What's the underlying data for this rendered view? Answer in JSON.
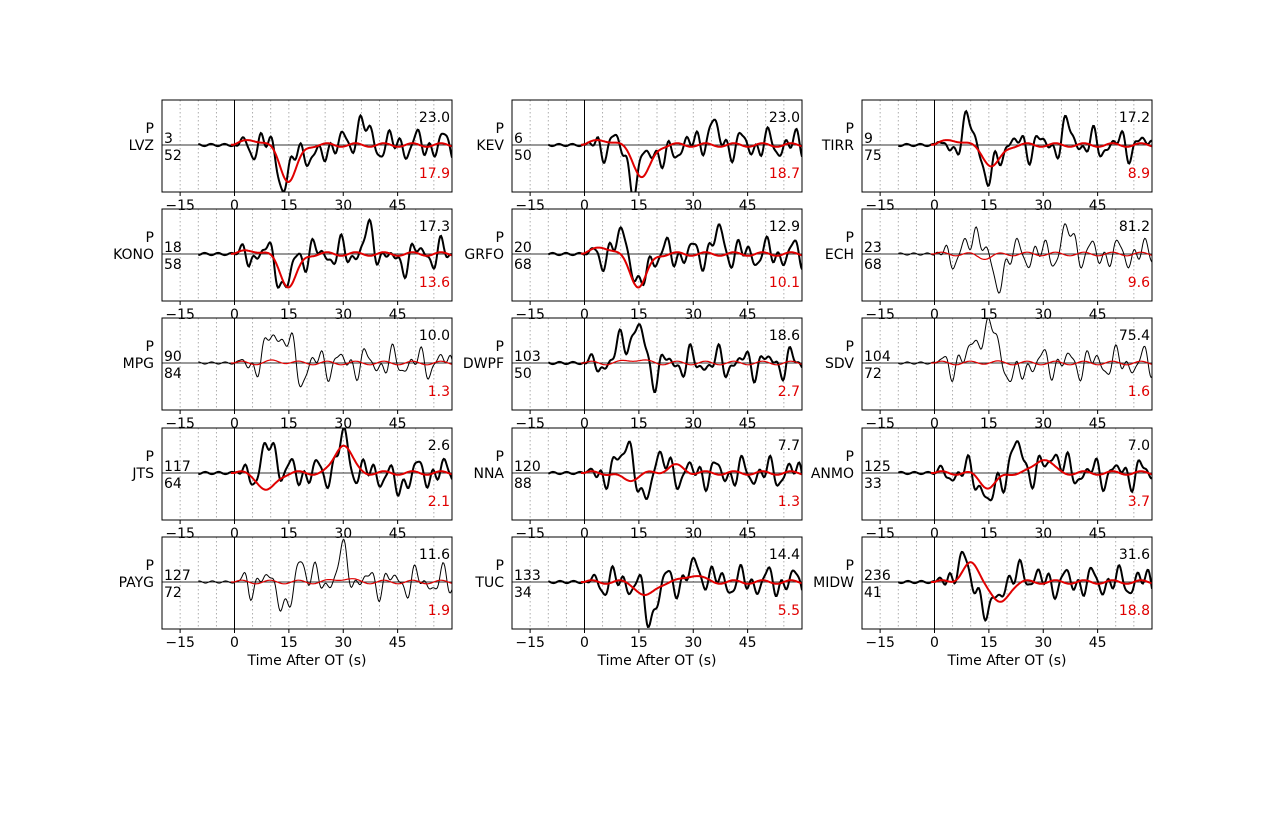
{
  "figure": {
    "xlabel": "Time After OT (s)",
    "xticks": [
      -15,
      0,
      15,
      30,
      45
    ],
    "xlim": [
      -20,
      60
    ],
    "phase_label": "P",
    "colors": {
      "observed": "#000000",
      "synthetic": "#e00000",
      "axis": "#000000",
      "grid": "#999999"
    }
  },
  "chart_data": [
    {
      "type": "line",
      "station": "LVZ",
      "azimuth": "3",
      "distance": "52",
      "obs_amp": "23.0",
      "syn_amp": "17.9",
      "obs_thin": false,
      "syn_thin": false,
      "events": [
        [
          14,
          -1.2
        ],
        [
          22,
          -0.5
        ],
        [
          35,
          0.6
        ]
      ],
      "syn_events": [
        [
          15,
          -1.0
        ],
        [
          5,
          0.15
        ]
      ]
    },
    {
      "type": "line",
      "station": "KEV",
      "azimuth": "6",
      "distance": "50",
      "obs_amp": "23.0",
      "syn_amp": "18.7",
      "obs_thin": false,
      "syn_thin": false,
      "events": [
        [
          14,
          -1.2
        ],
        [
          22,
          -0.5
        ],
        [
          35,
          0.5
        ]
      ],
      "syn_events": [
        [
          16,
          -0.9
        ],
        [
          5,
          0.15
        ]
      ]
    },
    {
      "type": "line",
      "station": "TIRR",
      "azimuth": "9",
      "distance": "75",
      "obs_amp": "17.2",
      "syn_amp": "8.9",
      "obs_thin": false,
      "syn_thin": false,
      "events": [
        [
          10,
          0.6
        ],
        [
          15,
          -1.1
        ],
        [
          37,
          0.4
        ]
      ],
      "syn_events": [
        [
          16,
          -0.6
        ],
        [
          5,
          0.15
        ]
      ]
    },
    {
      "type": "line",
      "station": "KONO",
      "azimuth": "18",
      "distance": "58",
      "obs_amp": "17.3",
      "syn_amp": "13.6",
      "obs_thin": false,
      "syn_thin": false,
      "events": [
        [
          14,
          -1.0
        ],
        [
          37,
          0.5
        ],
        [
          45,
          -0.3
        ]
      ],
      "syn_events": [
        [
          15,
          -0.9
        ],
        [
          5,
          0.1
        ]
      ]
    },
    {
      "type": "line",
      "station": "GRFO",
      "azimuth": "20",
      "distance": "68",
      "obs_amp": "12.9",
      "syn_amp": "10.1",
      "obs_thin": false,
      "syn_thin": false,
      "events": [
        [
          11,
          0.6
        ],
        [
          15,
          -1.1
        ],
        [
          37,
          0.5
        ]
      ],
      "syn_events": [
        [
          15,
          -0.9
        ],
        [
          5,
          0.2
        ]
      ]
    },
    {
      "type": "line",
      "station": "ECH",
      "azimuth": "23",
      "distance": "68",
      "obs_amp": "81.2",
      "syn_amp": "9.6",
      "obs_thin": true,
      "syn_thin": true,
      "events": [
        [
          12,
          0.7
        ],
        [
          17,
          -0.9
        ],
        [
          37,
          0.6
        ]
      ],
      "syn_events": [
        [
          14,
          -0.1
        ]
      ]
    },
    {
      "type": "line",
      "station": "MPG",
      "azimuth": "90",
      "distance": "84",
      "obs_amp": "10.0",
      "syn_amp": "1.3",
      "obs_thin": true,
      "syn_thin": true,
      "events": [
        [
          11,
          0.9
        ],
        [
          15,
          0.6
        ],
        [
          18,
          -0.4
        ]
      ],
      "syn_events": [
        [
          12,
          0.05
        ]
      ]
    },
    {
      "type": "line",
      "station": "DWPF",
      "azimuth": "103",
      "distance": "50",
      "obs_amp": "18.6",
      "syn_amp": "2.7",
      "obs_thin": false,
      "syn_thin": true,
      "events": [
        [
          11,
          0.7
        ],
        [
          15,
          0.9
        ],
        [
          19,
          -0.3
        ]
      ],
      "syn_events": [
        [
          14,
          0.1
        ]
      ]
    },
    {
      "type": "line",
      "station": "SDV",
      "azimuth": "104",
      "distance": "72",
      "obs_amp": "75.4",
      "syn_amp": "1.6",
      "obs_thin": true,
      "syn_thin": true,
      "events": [
        [
          12,
          0.8
        ],
        [
          16,
          0.9
        ],
        [
          22,
          -0.5
        ]
      ],
      "syn_events": [
        [
          15,
          0.02
        ]
      ]
    },
    {
      "type": "line",
      "station": "JTS",
      "azimuth": "117",
      "distance": "64",
      "obs_amp": "2.6",
      "syn_amp": "2.1",
      "obs_thin": false,
      "syn_thin": false,
      "events": [
        [
          10,
          0.8
        ],
        [
          30,
          0.9
        ],
        [
          45,
          -0.4
        ]
      ],
      "syn_events": [
        [
          9,
          -0.5
        ],
        [
          30,
          0.8
        ]
      ]
    },
    {
      "type": "line",
      "station": "NNA",
      "azimuth": "120",
      "distance": "88",
      "obs_amp": "7.7",
      "syn_amp": "1.3",
      "obs_thin": false,
      "syn_thin": false,
      "events": [
        [
          12,
          1.0
        ],
        [
          16,
          -1.0
        ],
        [
          20,
          0.5
        ]
      ],
      "syn_events": [
        [
          12,
          -0.2
        ],
        [
          25,
          0.2
        ]
      ]
    },
    {
      "type": "line",
      "station": "ANMO",
      "azimuth": "125",
      "distance": "33",
      "obs_amp": "7.0",
      "syn_amp": "3.7",
      "obs_thin": false,
      "syn_thin": false,
      "events": [
        [
          15,
          -0.9
        ],
        [
          23,
          0.7
        ],
        [
          33,
          0.6
        ]
      ],
      "syn_events": [
        [
          15,
          -0.4
        ],
        [
          30,
          0.4
        ]
      ]
    },
    {
      "type": "line",
      "station": "PAYG",
      "azimuth": "127",
      "distance": "72",
      "obs_amp": "11.6",
      "syn_amp": "1.9",
      "obs_thin": true,
      "syn_thin": true,
      "events": [
        [
          15,
          -1.0
        ],
        [
          18,
          0.8
        ],
        [
          30,
          0.7
        ]
      ],
      "syn_events": [
        [
          30,
          0.1
        ]
      ]
    },
    {
      "type": "line",
      "station": "TUC",
      "azimuth": "133",
      "distance": "34",
      "obs_amp": "14.4",
      "syn_amp": "5.5",
      "obs_thin": false,
      "syn_thin": false,
      "events": [
        [
          18,
          -1.0
        ],
        [
          30,
          0.3
        ],
        [
          33,
          0.2
        ]
      ],
      "syn_events": [
        [
          17,
          -0.4
        ],
        [
          30,
          0.2
        ]
      ]
    },
    {
      "type": "line",
      "station": "MIDW",
      "azimuth": "236",
      "distance": "41",
      "obs_amp": "31.6",
      "syn_amp": "18.8",
      "obs_thin": false,
      "syn_thin": false,
      "events": [
        [
          7,
          0.6
        ],
        [
          15,
          -1.0
        ],
        [
          25,
          0.3
        ]
      ],
      "syn_events": [
        [
          10,
          0.5
        ],
        [
          18,
          -0.6
        ]
      ]
    }
  ]
}
